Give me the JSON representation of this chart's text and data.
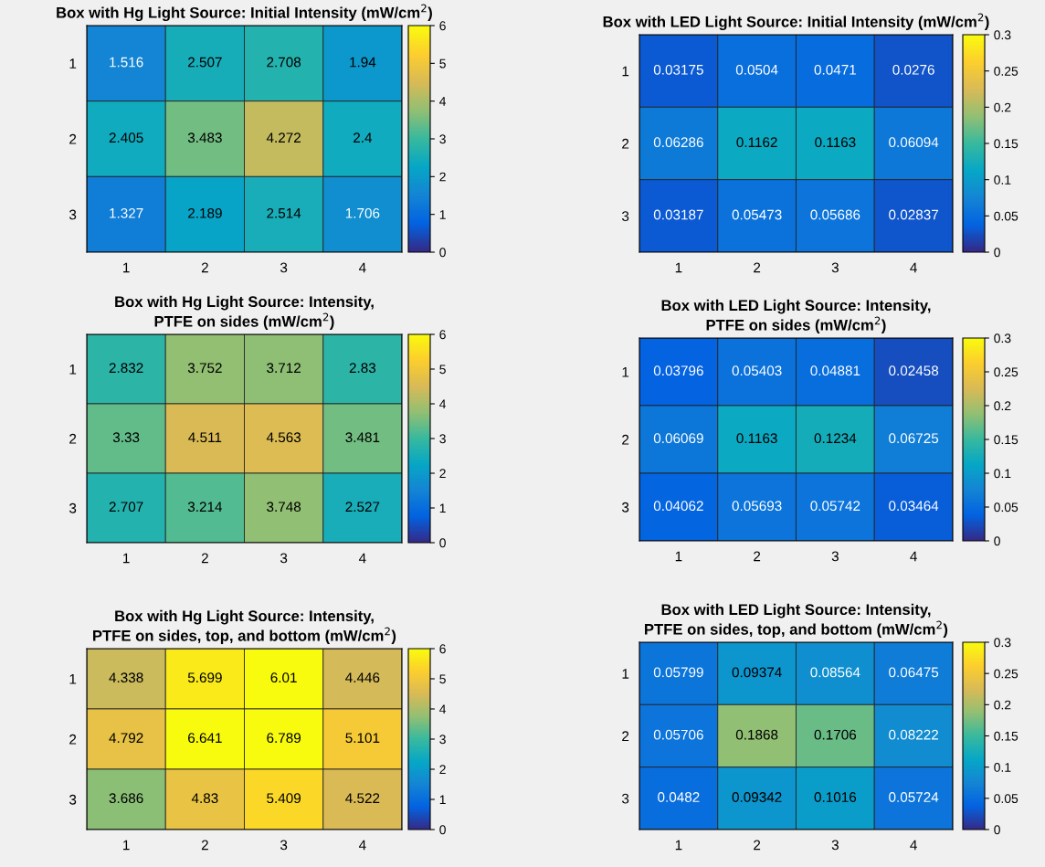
{
  "chart_data": [
    {
      "type": "heatmap",
      "title": "Box with Hg Light Source: Initial Intensity (mW/cm$^{2}$)",
      "categories": [
        "1",
        "2",
        "3",
        "4"
      ],
      "y_categories": [
        "1",
        "2",
        "3"
      ],
      "cells": [
        [
          1.516,
          2.507,
          2.708,
          1.94
        ],
        [
          2.405,
          3.483,
          4.272,
          2.4
        ],
        [
          1.327,
          2.189,
          2.514,
          1.706
        ]
      ],
      "clim": [
        0,
        6
      ],
      "cticks": [
        0,
        1,
        2,
        3,
        4,
        5,
        6
      ],
      "data_labels": true
    },
    {
      "type": "heatmap",
      "title": "Box with LED Light Source: Initial Intensity (mW/cm$^{2}$)",
      "categories": [
        "1",
        "2",
        "3",
        "4"
      ],
      "y_categories": [
        "1",
        "2",
        "3"
      ],
      "cells": [
        [
          0.03175,
          0.0504,
          0.0471,
          0.0276
        ],
        [
          0.06286,
          0.1162,
          0.1163,
          0.06094
        ],
        [
          0.03187,
          0.05473,
          0.05686,
          0.02837
        ]
      ],
      "clim": [
        0,
        0.3
      ],
      "cticks": [
        0,
        0.05,
        0.1,
        0.15,
        0.2,
        0.25,
        0.3
      ],
      "data_labels": true
    },
    {
      "type": "heatmap",
      "title": "Box with Hg Light Source: Intensity,\nPTFE on sides (mW/cm$^{2}$)",
      "categories": [
        "1",
        "2",
        "3",
        "4"
      ],
      "y_categories": [
        "1",
        "2",
        "3"
      ],
      "cells": [
        [
          2.832,
          3.752,
          3.712,
          2.83
        ],
        [
          3.33,
          4.511,
          4.563,
          3.481
        ],
        [
          2.707,
          3.214,
          3.748,
          2.527
        ]
      ],
      "clim": [
        0,
        6
      ],
      "cticks": [
        0,
        1,
        2,
        3,
        4,
        5,
        6
      ],
      "data_labels": true
    },
    {
      "type": "heatmap",
      "title": "Box with LED Light Source: Intensity,\nPTFE on sides (mW/cm$^{2}$)",
      "categories": [
        "1",
        "2",
        "3",
        "4"
      ],
      "y_categories": [
        "1",
        "2",
        "3"
      ],
      "cells": [
        [
          0.03796,
          0.05403,
          0.04881,
          0.02458
        ],
        [
          0.06069,
          0.1163,
          0.1234,
          0.06725
        ],
        [
          0.04062,
          0.05693,
          0.05742,
          0.03464
        ]
      ],
      "clim": [
        0,
        0.3
      ],
      "cticks": [
        0,
        0.05,
        0.1,
        0.15,
        0.2,
        0.25,
        0.3
      ],
      "data_labels": true
    },
    {
      "type": "heatmap",
      "title": "Box with Hg Light Source: Intensity,\nPTFE on sides, top, and bottom (mW/cm$^{2}$)",
      "categories": [
        "1",
        "2",
        "3",
        "4"
      ],
      "y_categories": [
        "1",
        "2",
        "3"
      ],
      "cells": [
        [
          4.338,
          5.699,
          6.01,
          4.446
        ],
        [
          4.792,
          6.641,
          6.789,
          5.101
        ],
        [
          3.686,
          4.83,
          5.409,
          4.522
        ]
      ],
      "clim": [
        0,
        6
      ],
      "cticks": [
        0,
        1,
        2,
        3,
        4,
        5,
        6
      ],
      "data_labels": true
    },
    {
      "type": "heatmap",
      "title": "Box with LED Light Source: Intensity,\nPTFE on sides, top, and bottom (mW/cm$^{2}$)",
      "categories": [
        "1",
        "2",
        "3",
        "4"
      ],
      "y_categories": [
        "1",
        "2",
        "3"
      ],
      "cells": [
        [
          0.05799,
          0.09374,
          0.08564,
          0.06475
        ],
        [
          0.05706,
          0.1868,
          0.1706,
          0.08222
        ],
        [
          0.0482,
          0.09342,
          0.1016,
          0.05724
        ]
      ],
      "clim": [
        0,
        0.3
      ],
      "cticks": [
        0,
        0.05,
        0.1,
        0.15,
        0.2,
        0.25,
        0.3
      ],
      "data_labels": true
    }
  ]
}
